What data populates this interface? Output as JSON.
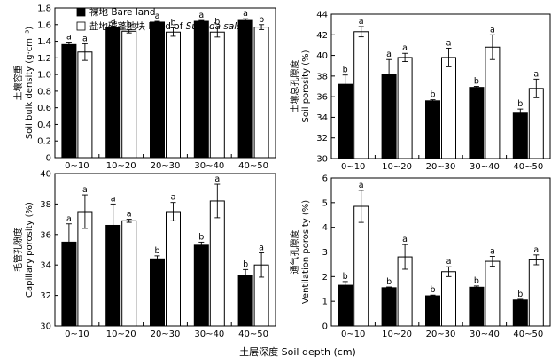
{
  "x_axis_title": "土层深度 Soil depth (cm)",
  "legend": [
    {
      "label": "裸地 Bare land",
      "fill": "#000000"
    },
    {
      "label_prefix": "盐地碱蓬地块 Land of ",
      "label_italic": "Suaeda salsa",
      "fill": "#ffffff"
    }
  ],
  "colors": {
    "bare": "#000000",
    "suaeda": "#ffffff",
    "outline": "#000000"
  },
  "chart_data": [
    {
      "type": "bar",
      "ylabel_cn": "土壤容重",
      "ylabel_en": "Soil bulk density (g·cm⁻³)",
      "ylim": [
        0,
        1.8
      ],
      "yticks": [
        "0",
        "0.2",
        "0.4",
        "0.6",
        "0.8",
        "1.0",
        "1.2",
        "1.4",
        "1.6",
        "1.8"
      ],
      "categories": [
        "0~10",
        "10~20",
        "20~30",
        "30~40",
        "40~50"
      ],
      "series": [
        {
          "name": "裸地 Bare land",
          "values": [
            1.36,
            1.57,
            1.63,
            1.64,
            1.65
          ],
          "errors": [
            0.03,
            0.01,
            0.01,
            0.01,
            0.02
          ],
          "letters": [
            "a",
            "a",
            "a",
            "a",
            "a"
          ]
        },
        {
          "name": "盐地碱蓬地块 Land of Suaeda salsa",
          "values": [
            1.27,
            1.52,
            1.51,
            1.51,
            1.57
          ],
          "errors": [
            0.1,
            0.02,
            0.05,
            0.06,
            0.03
          ],
          "letters": [
            "a",
            "b",
            "b",
            "b",
            "b"
          ]
        }
      ]
    },
    {
      "type": "bar",
      "ylabel_cn": "土壤总孔隙度",
      "ylabel_en": "Soil porosity (%)",
      "ylim": [
        30,
        44
      ],
      "yticks": [
        "30",
        "32",
        "34",
        "36",
        "38",
        "40",
        "42",
        "44"
      ],
      "categories": [
        "0~10",
        "10~20",
        "20~30",
        "30~40",
        "40~50"
      ],
      "series": [
        {
          "name": "裸地 Bare land",
          "values": [
            37.2,
            38.2,
            35.6,
            36.9,
            34.4
          ],
          "errors": [
            0.9,
            1.4,
            0.1,
            0.1,
            0.4
          ],
          "letters": [
            "b",
            "a",
            "b",
            "b",
            "b"
          ]
        },
        {
          "name": "盐地碱蓬地块 Land of Suaeda salsa",
          "values": [
            42.3,
            39.8,
            39.8,
            40.8,
            36.8
          ],
          "errors": [
            0.5,
            0.4,
            0.9,
            1.2,
            0.9
          ],
          "letters": [
            "a",
            "a",
            "a",
            "a",
            "a"
          ]
        }
      ]
    },
    {
      "type": "bar",
      "ylabel_cn": "毛管孔隙度",
      "ylabel_en": "Capillary porosity (%)",
      "ylim": [
        30,
        40
      ],
      "yticks": [
        "30",
        "32",
        "34",
        "36",
        "38",
        "40"
      ],
      "categories": [
        "0~10",
        "10~20",
        "20~30",
        "30~40",
        "40~50"
      ],
      "series": [
        {
          "name": "裸地 Bare land",
          "values": [
            35.5,
            36.6,
            34.4,
            35.3,
            33.3
          ],
          "errors": [
            1.2,
            1.4,
            0.2,
            0.2,
            0.4
          ],
          "letters": [
            "a",
            "a",
            "b",
            "b",
            "b"
          ]
        },
        {
          "name": "盐地碱蓬地块 Land of Suaeda salsa",
          "values": [
            37.5,
            36.9,
            37.5,
            38.2,
            34.0
          ],
          "errors": [
            1.1,
            0.1,
            0.6,
            1.1,
            0.8
          ],
          "letters": [
            "a",
            "a",
            "a",
            "a",
            "a"
          ]
        }
      ]
    },
    {
      "type": "bar",
      "ylabel_cn": "通气孔隙度",
      "ylabel_en": "Ventilation porosity (%)",
      "ylim": [
        0,
        6
      ],
      "yticks": [
        "0",
        "1",
        "2",
        "3",
        "4",
        "5",
        "6"
      ],
      "categories": [
        "0~10",
        "10~20",
        "20~30",
        "30~40",
        "40~50"
      ],
      "series": [
        {
          "name": "裸地 Bare land",
          "values": [
            1.65,
            1.55,
            1.22,
            1.57,
            1.05
          ],
          "errors": [
            0.15,
            0.03,
            0.03,
            0.05,
            0.03
          ],
          "letters": [
            "b",
            "b",
            "b",
            "b",
            "b"
          ]
        },
        {
          "name": "盐地碱蓬地块 Land of Suaeda salsa",
          "values": [
            4.85,
            2.8,
            2.2,
            2.62,
            2.68
          ],
          "errors": [
            0.65,
            0.5,
            0.2,
            0.2,
            0.2
          ],
          "letters": [
            "a",
            "a",
            "a",
            "a",
            "a"
          ]
        }
      ]
    }
  ]
}
